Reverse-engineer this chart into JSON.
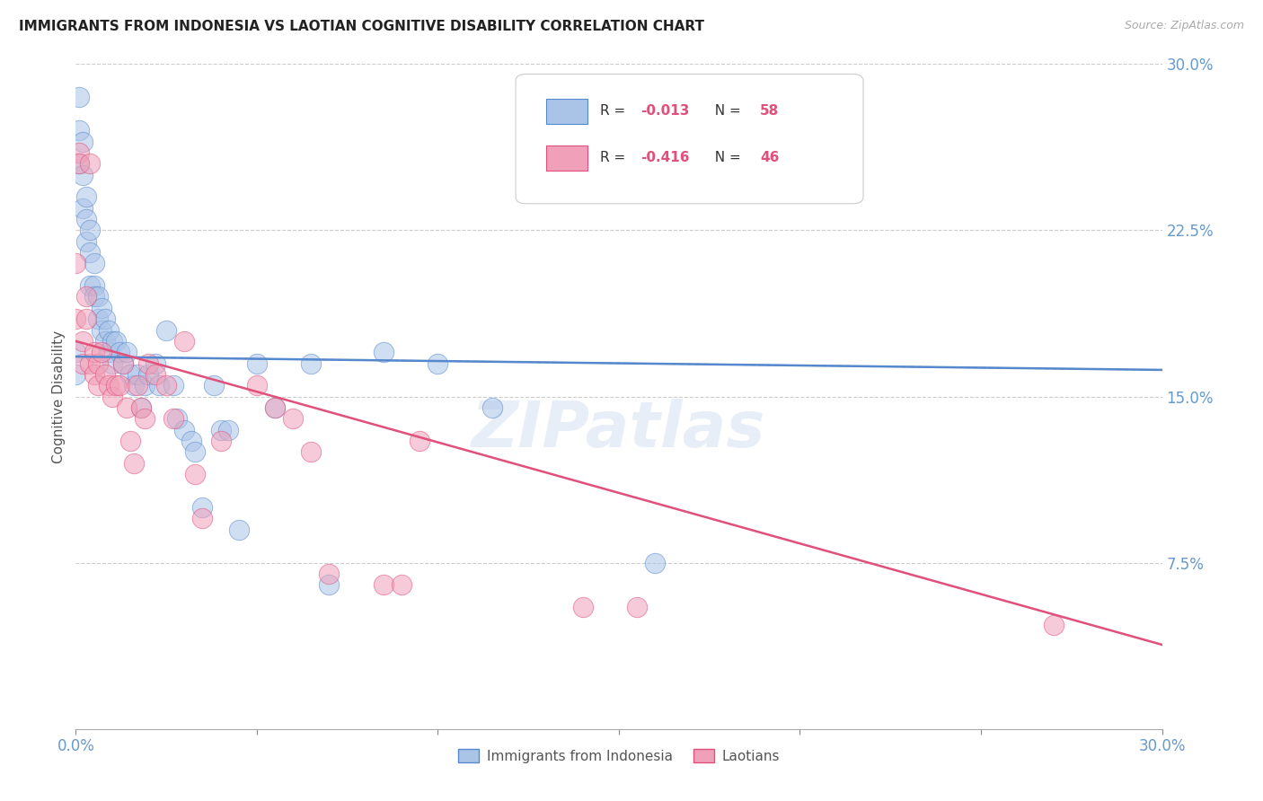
{
  "title": "IMMIGRANTS FROM INDONESIA VS LAOTIAN COGNITIVE DISABILITY CORRELATION CHART",
  "source": "Source: ZipAtlas.com",
  "ylabel": "Cognitive Disability",
  "xlim": [
    0.0,
    0.3
  ],
  "ylim": [
    0.0,
    0.3
  ],
  "yticks": [
    0.075,
    0.15,
    0.225,
    0.3
  ],
  "ytick_labels": [
    "7.5%",
    "15.0%",
    "22.5%",
    "30.0%"
  ],
  "xticks": [
    0.0,
    0.05,
    0.1,
    0.15,
    0.2,
    0.25,
    0.3
  ],
  "xtick_labels": [
    "0.0%",
    "",
    "",
    "",
    "",
    "",
    "30.0%"
  ],
  "grid_color": "#cccccc",
  "background_color": "#ffffff",
  "legend_r1": "R = -0.013",
  "legend_n1": "N = 58",
  "legend_r2": "R = -0.416",
  "legend_n2": "N = 46",
  "color_blue": "#aac4e8",
  "color_pink": "#f0a0b8",
  "line_blue": "#5588cc",
  "line_pink": "#e0507a",
  "tick_color": "#6699cc",
  "indo_line_x0": 0.0,
  "indo_line_x1": 0.3,
  "indo_line_y0": 0.168,
  "indo_line_y1": 0.162,
  "lao_line_x0": 0.0,
  "lao_line_x1": 0.3,
  "lao_line_y0": 0.175,
  "lao_line_y1": 0.038,
  "indonesia_x": [
    0.0,
    0.0,
    0.001,
    0.001,
    0.001,
    0.002,
    0.002,
    0.002,
    0.003,
    0.003,
    0.003,
    0.004,
    0.004,
    0.004,
    0.005,
    0.005,
    0.005,
    0.006,
    0.006,
    0.007,
    0.007,
    0.008,
    0.008,
    0.009,
    0.009,
    0.01,
    0.01,
    0.011,
    0.012,
    0.013,
    0.014,
    0.015,
    0.016,
    0.017,
    0.018,
    0.019,
    0.02,
    0.022,
    0.023,
    0.025,
    0.027,
    0.028,
    0.03,
    0.032,
    0.033,
    0.035,
    0.038,
    0.04,
    0.042,
    0.045,
    0.05,
    0.055,
    0.065,
    0.07,
    0.085,
    0.1,
    0.115,
    0.16
  ],
  "indonesia_y": [
    0.17,
    0.16,
    0.285,
    0.27,
    0.255,
    0.265,
    0.25,
    0.235,
    0.24,
    0.23,
    0.22,
    0.225,
    0.215,
    0.2,
    0.21,
    0.2,
    0.195,
    0.195,
    0.185,
    0.19,
    0.18,
    0.185,
    0.175,
    0.18,
    0.17,
    0.175,
    0.165,
    0.175,
    0.17,
    0.165,
    0.17,
    0.16,
    0.155,
    0.16,
    0.145,
    0.155,
    0.16,
    0.165,
    0.155,
    0.18,
    0.155,
    0.14,
    0.135,
    0.13,
    0.125,
    0.1,
    0.155,
    0.135,
    0.135,
    0.09,
    0.165,
    0.145,
    0.165,
    0.065,
    0.17,
    0.165,
    0.145,
    0.075
  ],
  "laotian_x": [
    0.0,
    0.0,
    0.001,
    0.001,
    0.002,
    0.002,
    0.003,
    0.003,
    0.004,
    0.004,
    0.005,
    0.005,
    0.006,
    0.006,
    0.007,
    0.008,
    0.009,
    0.01,
    0.011,
    0.012,
    0.013,
    0.014,
    0.015,
    0.016,
    0.017,
    0.018,
    0.019,
    0.02,
    0.022,
    0.025,
    0.027,
    0.03,
    0.033,
    0.035,
    0.04,
    0.05,
    0.055,
    0.06,
    0.065,
    0.07,
    0.085,
    0.09,
    0.095,
    0.14,
    0.155,
    0.27
  ],
  "laotian_y": [
    0.185,
    0.21,
    0.26,
    0.255,
    0.175,
    0.165,
    0.195,
    0.185,
    0.255,
    0.165,
    0.17,
    0.16,
    0.155,
    0.165,
    0.17,
    0.16,
    0.155,
    0.15,
    0.155,
    0.155,
    0.165,
    0.145,
    0.13,
    0.12,
    0.155,
    0.145,
    0.14,
    0.165,
    0.16,
    0.155,
    0.14,
    0.175,
    0.115,
    0.095,
    0.13,
    0.155,
    0.145,
    0.14,
    0.125,
    0.07,
    0.065,
    0.065,
    0.13,
    0.055,
    0.055,
    0.047
  ]
}
